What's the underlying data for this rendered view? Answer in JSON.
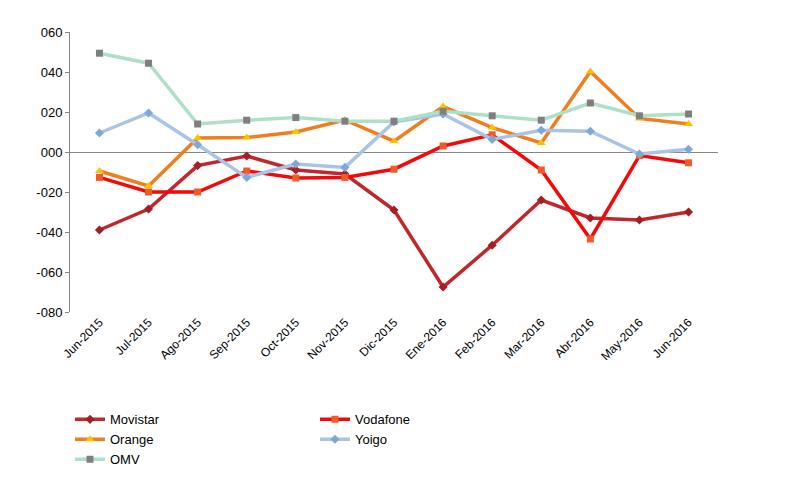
{
  "chart_data": {
    "type": "line",
    "categories": [
      "Jun-2015",
      "Jul-2015",
      "Ago-2015",
      "Sep-2015",
      "Oct-2015",
      "Nov-2015",
      "Dic-2015",
      "Ene-2016",
      "Feb-2016",
      "Mar-2016",
      "Abr-2016",
      "May-2016",
      "Jun-2016"
    ],
    "series": [
      {
        "name": "Movistar",
        "color": "#c0272d",
        "marker": "diamond",
        "values": [
          -39,
          -28.5,
          -6.8,
          -2,
          -9,
          -11,
          -29,
          -67.5,
          -46.6,
          -24,
          -33,
          -34,
          -30
        ]
      },
      {
        "name": "Vodafone",
        "color": "#f20a0a",
        "marker": "square",
        "values": [
          -12.7,
          -20,
          -20,
          -9.5,
          -13,
          -12.7,
          -8.6,
          3,
          8.6,
          -9,
          -43.5,
          -1.8,
          -5.4
        ]
      },
      {
        "name": "Orange",
        "color": "#f07d1e",
        "marker": "triangle-up",
        "values": [
          -9.5,
          -17,
          7,
          7.2,
          10,
          16,
          5.4,
          22.7,
          12.2,
          4.5,
          40.3,
          16.8,
          14
        ]
      },
      {
        "name": "Yoigo",
        "color": "#a9c4e4",
        "marker": "diamond",
        "values": [
          9.5,
          19.5,
          3.6,
          -12.7,
          -6,
          -7.7,
          15,
          19,
          6.3,
          10.9,
          10.4,
          -1,
          1.4
        ]
      },
      {
        "name": "OMV",
        "color": "#aee0c8",
        "marker": "square",
        "values": [
          49.4,
          44.4,
          14,
          15.9,
          17.2,
          15.4,
          15.4,
          20.4,
          18.1,
          15.9,
          24.5,
          18.1,
          19
        ]
      }
    ],
    "ylim": [
      -80,
      60
    ],
    "yticks": [
      {
        "value": -80,
        "label": "-080"
      },
      {
        "value": -60,
        "label": "-060"
      },
      {
        "value": -40,
        "label": "-040"
      },
      {
        "value": -20,
        "label": "-020"
      },
      {
        "value": 0,
        "label": "000"
      },
      {
        "value": 20,
        "label": "020"
      },
      {
        "value": 40,
        "label": "040"
      },
      {
        "value": 60,
        "label": "060"
      }
    ],
    "grid": false,
    "legend": "bottom"
  }
}
